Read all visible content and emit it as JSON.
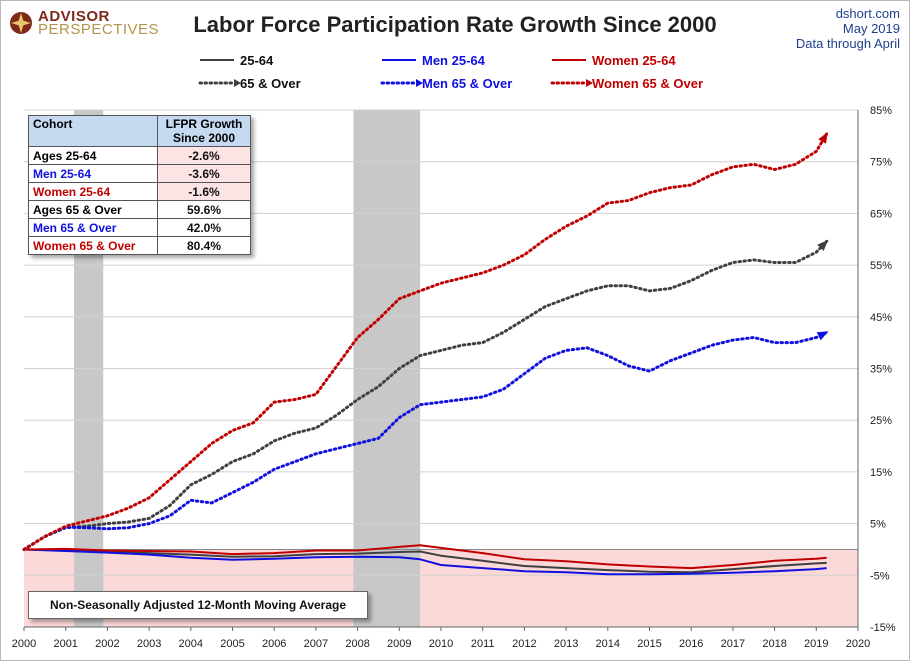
{
  "header": {
    "logo_line1": "ADVISOR",
    "logo_line2": "PERSPECTIVES",
    "title": "Labor Force Participation Rate Growth Since 2000",
    "source_line1": "dshort.com",
    "source_line2": "May 2019",
    "source_line3": "Data through April"
  },
  "legend": {
    "items": [
      {
        "label": "25-64",
        "color": "#404040",
        "style": "solid"
      },
      {
        "label": "Men 25-64",
        "color": "#1010e0",
        "style": "solid"
      },
      {
        "label": "Women 25-64",
        "color": "#c00000",
        "style": "solid"
      },
      {
        "label": "65 & Over",
        "color": "#404040",
        "style": "dotted"
      },
      {
        "label": "Men 65 & Over",
        "color": "#1010e0",
        "style": "dotted"
      },
      {
        "label": "Women 65 & Over",
        "color": "#c00000",
        "style": "dotted"
      }
    ]
  },
  "table": {
    "col1_header": "Cohort",
    "col2_header_line1": "LFPR Growth",
    "col2_header_line2": "Since 2000",
    "rows": [
      {
        "name": "Ages 25-64",
        "value": "-2.6%",
        "color": "#000000"
      },
      {
        "name": "Men 25-64",
        "value": "-3.6%",
        "color": "#1010e0"
      },
      {
        "name": "Women 25-64",
        "value": "-1.6%",
        "color": "#c00000"
      },
      {
        "name": "Ages 65  & Over",
        "value": "59.6%",
        "color": "#000000"
      },
      {
        "name": "Men 65  & Over",
        "value": "42.0%",
        "color": "#1010e0"
      },
      {
        "name": "Women 65 & Over",
        "value": "80.4%",
        "color": "#c00000"
      }
    ]
  },
  "note": "Non-Seasonally Adjusted 12-Month Moving Average",
  "chart_data": {
    "type": "line",
    "title": "Labor Force Participation Rate Growth Since 2000",
    "x_ticks": [
      "2000",
      "2001",
      "2002",
      "2003",
      "2004",
      "2005",
      "2006",
      "2007",
      "2008",
      "2009",
      "2010",
      "2011",
      "2012",
      "2013",
      "2014",
      "2015",
      "2016",
      "2017",
      "2018",
      "2019",
      "2020"
    ],
    "y_ticks": [
      "85%",
      "75%",
      "65%",
      "55%",
      "45%",
      "35%",
      "25%",
      "15%",
      "5%",
      "-5%",
      "-15%"
    ],
    "xlim": [
      2000,
      2020
    ],
    "ylim": [
      -15,
      85
    ],
    "recessions": [
      [
        2001.2,
        2001.9
      ],
      [
        2007.9,
        2009.5
      ]
    ],
    "negative_shading_color": "#fcd9d9",
    "recession_color": "#c8c8c8",
    "series": [
      {
        "name": "25-64",
        "style": "solid",
        "color": "#404040",
        "x": [
          2000,
          2001,
          2002,
          2003,
          2004,
          2005,
          2006,
          2007,
          2008,
          2009,
          2009.5,
          2010,
          2011,
          2012,
          2013,
          2014,
          2015,
          2016,
          2017,
          2018,
          2019,
          2019.25
        ],
        "y": [
          0,
          -0.1,
          -0.4,
          -0.7,
          -1.0,
          -1.4,
          -1.3,
          -0.9,
          -0.8,
          -0.5,
          -0.4,
          -1.2,
          -2.2,
          -3.2,
          -3.6,
          -4.0,
          -4.3,
          -4.4,
          -3.8,
          -3.2,
          -2.7,
          -2.6
        ]
      },
      {
        "name": "Men 25-64",
        "style": "solid",
        "color": "#1010e0",
        "x": [
          2000,
          2001,
          2002,
          2003,
          2004,
          2005,
          2006,
          2007,
          2008,
          2009,
          2009.5,
          2010,
          2011,
          2012,
          2013,
          2014,
          2015,
          2016,
          2017,
          2018,
          2019,
          2019.25
        ],
        "y": [
          0,
          -0.3,
          -0.6,
          -1.0,
          -1.6,
          -2.0,
          -1.8,
          -1.5,
          -1.4,
          -1.5,
          -1.9,
          -3.0,
          -3.6,
          -4.2,
          -4.4,
          -4.8,
          -4.8,
          -4.7,
          -4.5,
          -4.2,
          -3.8,
          -3.6
        ]
      },
      {
        "name": "Women 25-64",
        "style": "solid",
        "color": "#c00000",
        "x": [
          2000,
          2001,
          2002,
          2003,
          2004,
          2005,
          2006,
          2007,
          2008,
          2009,
          2009.5,
          2010,
          2011,
          2012,
          2013,
          2014,
          2015,
          2016,
          2017,
          2018,
          2019,
          2019.25
        ],
        "y": [
          0,
          0.1,
          -0.2,
          -0.3,
          -0.4,
          -0.9,
          -0.7,
          -0.2,
          -0.2,
          0.5,
          0.8,
          0.3,
          -0.7,
          -1.9,
          -2.3,
          -2.9,
          -3.3,
          -3.6,
          -3.0,
          -2.2,
          -1.8,
          -1.6
        ]
      },
      {
        "name": "65 & Over",
        "style": "dotted",
        "color": "#404040",
        "x": [
          2000,
          2000.5,
          2001,
          2001.5,
          2002,
          2002.5,
          2003,
          2003.5,
          2004,
          2004.5,
          2005,
          2005.5,
          2006,
          2006.5,
          2007,
          2007.5,
          2008,
          2008.5,
          2009,
          2009.5,
          2010,
          2010.5,
          2011,
          2011.5,
          2012,
          2012.5,
          2013,
          2013.5,
          2014,
          2014.5,
          2015,
          2015.5,
          2016,
          2016.5,
          2017,
          2017.5,
          2018,
          2018.5,
          2019,
          2019.25
        ],
        "y": [
          0,
          2.5,
          4.2,
          4.5,
          5.0,
          5.3,
          6.0,
          8.5,
          12.5,
          14.5,
          17.0,
          18.5,
          21.0,
          22.5,
          23.5,
          26.0,
          29.0,
          31.5,
          35.0,
          37.5,
          38.5,
          39.5,
          40.0,
          42.0,
          44.5,
          47.0,
          48.5,
          50.0,
          51.0,
          51.0,
          50.0,
          50.5,
          52.0,
          54.0,
          55.5,
          56.0,
          55.5,
          55.5,
          57.5,
          59.6
        ]
      },
      {
        "name": "Men 65 & Over",
        "style": "dotted",
        "color": "#1010e0",
        "x": [
          2000,
          2000.5,
          2001,
          2001.5,
          2002,
          2002.5,
          2003,
          2003.5,
          2004,
          2004.5,
          2005,
          2005.5,
          2006,
          2006.5,
          2007,
          2007.5,
          2008,
          2008.5,
          2009,
          2009.5,
          2010,
          2010.5,
          2011,
          2011.5,
          2012,
          2012.5,
          2013,
          2013.5,
          2014,
          2014.5,
          2015,
          2015.5,
          2016,
          2016.5,
          2017,
          2017.5,
          2018,
          2018.5,
          2019,
          2019.25
        ],
        "y": [
          0,
          2.5,
          4.3,
          4.2,
          4.0,
          4.2,
          5.0,
          6.5,
          9.5,
          9.0,
          11.0,
          13.0,
          15.5,
          17.0,
          18.5,
          19.5,
          20.5,
          21.5,
          25.5,
          28.0,
          28.5,
          29.0,
          29.5,
          31.0,
          34.0,
          37.0,
          38.5,
          39.0,
          37.5,
          35.5,
          34.5,
          36.5,
          38.0,
          39.5,
          40.5,
          41.0,
          40.0,
          40.0,
          41.0,
          42.0
        ]
      },
      {
        "name": "Women 65 & Over",
        "style": "dotted",
        "color": "#c00000",
        "x": [
          2000,
          2000.5,
          2001,
          2001.5,
          2002,
          2002.5,
          2003,
          2003.5,
          2004,
          2004.5,
          2005,
          2005.5,
          2006,
          2006.5,
          2007,
          2007.5,
          2008,
          2008.5,
          2009,
          2009.5,
          2010,
          2010.5,
          2011,
          2011.5,
          2012,
          2012.5,
          2013,
          2013.5,
          2014,
          2014.5,
          2015,
          2015.5,
          2016,
          2016.5,
          2017,
          2017.5,
          2018,
          2018.5,
          2019,
          2019.25
        ],
        "y": [
          0,
          2.5,
          4.5,
          5.5,
          6.5,
          8.0,
          10.0,
          13.5,
          17.0,
          20.5,
          23.0,
          24.5,
          28.5,
          29.0,
          30.0,
          35.5,
          41.0,
          44.5,
          48.5,
          50.0,
          51.5,
          52.5,
          53.5,
          55.0,
          57.0,
          60.0,
          62.5,
          64.5,
          67.0,
          67.5,
          69.0,
          70.0,
          70.5,
          72.5,
          74.0,
          74.5,
          73.5,
          74.5,
          77.0,
          80.4
        ]
      }
    ]
  }
}
